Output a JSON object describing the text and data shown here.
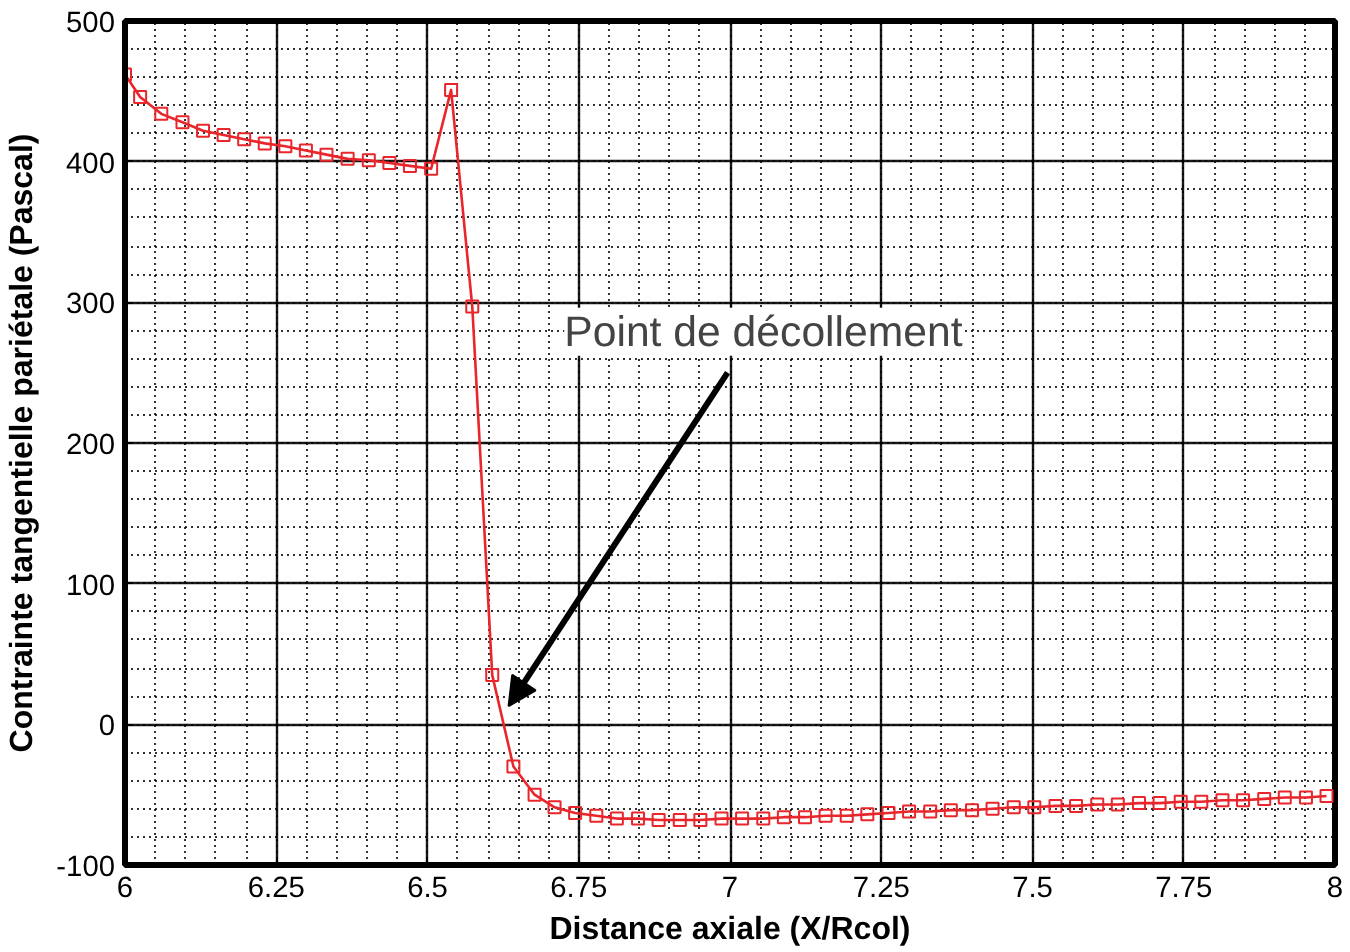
{
  "chart_data": {
    "type": "line",
    "xlabel": "Distance axiale (X/Rcol)",
    "ylabel": "Contrainte tangentielle pariétale (Pascal)",
    "x": [
      6.0,
      6.025,
      6.06,
      6.095,
      6.129,
      6.163,
      6.197,
      6.231,
      6.265,
      6.299,
      6.333,
      6.368,
      6.403,
      6.437,
      6.471,
      6.506,
      6.539,
      6.574,
      6.607,
      6.642,
      6.677,
      6.71,
      6.744,
      6.779,
      6.813,
      6.848,
      6.882,
      6.917,
      6.951,
      6.986,
      7.02,
      7.055,
      7.089,
      7.124,
      7.158,
      7.193,
      7.227,
      7.262,
      7.296,
      7.331,
      7.365,
      7.4,
      7.434,
      7.469,
      7.503,
      7.538,
      7.572,
      7.607,
      7.641,
      7.676,
      7.71,
      7.745,
      7.779,
      7.814,
      7.848,
      7.883,
      7.917,
      7.952,
      7.986
    ],
    "series": [
      {
        "color": "#e8262b",
        "values": [
          462,
          446,
          434,
          428,
          422,
          419,
          416,
          413,
          411,
          408,
          405,
          402,
          401,
          399,
          397,
          395,
          451,
          297,
          35,
          -30,
          -50,
          -59,
          -63,
          -65,
          -67,
          -67,
          -68,
          -68,
          -68,
          -67,
          -67,
          -67,
          -66,
          -66,
          -65,
          -65,
          -64,
          -63,
          -62,
          -62,
          -61,
          -61,
          -60,
          -59,
          -59,
          -58,
          -58,
          -57,
          -57,
          -56,
          -56,
          -55,
          -55,
          -54,
          -54,
          -53,
          -52,
          -52,
          -51
        ]
      }
    ],
    "xlim": [
      6,
      8
    ],
    "ylim": [
      -100,
      500
    ],
    "xticks": [
      6,
      6.25,
      6.5,
      6.75,
      7,
      7.25,
      7.5,
      7.75,
      8
    ],
    "yticks": [
      -100,
      0,
      100,
      200,
      300,
      400,
      500
    ],
    "grid": true,
    "marker": "square",
    "line_style": "solid",
    "annotations": [
      {
        "text": "Point de décollement",
        "x": 6.626,
        "y": 10
      }
    ]
  }
}
